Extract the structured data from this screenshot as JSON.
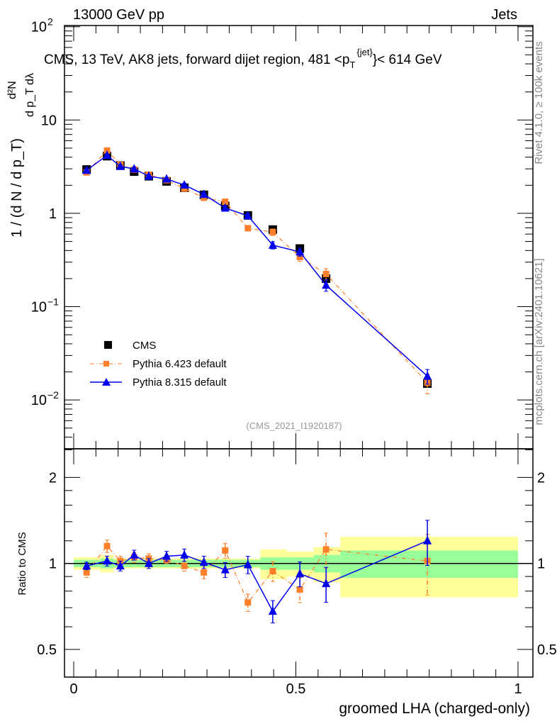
{
  "header": {
    "left": "13000 GeV pp",
    "right": "Jets"
  },
  "side_labels": {
    "rivet": "Rivet 4.1.0, ≥ 100k events",
    "mcplots": "mcplots.cern.ch [arXiv:2401.10621]"
  },
  "chart_data": [
    {
      "type": "line",
      "title": "CMS, 13 TeV, AK8 jets, forward dijet region, 481 <p_T^{jet}< 614 GeV",
      "title_parts": {
        "main": "CMS, 13 TeV, AK8 jets, forward dijet region, 481 <p",
        "sub": "T",
        "sup": "{jet}",
        "end": "}< 614 GeV"
      },
      "ylabel": "1/(dN/dp_T) d^2N/(dp_T dλ)",
      "ylabel_parts": {
        "num": "d²N",
        "den": "d p_T dλ",
        "prefix": "1 / (d N / d p_T)"
      },
      "yscale": "log",
      "ylim": [
        0.003,
        103
      ],
      "xlim": [
        -0.02,
        1.03
      ],
      "yticks": [
        {
          "v": 100,
          "label": "10",
          "exp": "2"
        },
        {
          "v": 10,
          "label": "10",
          "exp": ""
        },
        {
          "v": 1,
          "label": "1",
          "exp": ""
        },
        {
          "v": 0.1,
          "label": "10",
          "exp": "−1"
        },
        {
          "v": 0.01,
          "label": "10",
          "exp": "−2"
        }
      ],
      "annotation": "(CMS_2021_I1920187)",
      "legend_placement": "lower-left",
      "bin_edges": [
        0,
        0.06,
        0.09,
        0.12,
        0.15,
        0.19,
        0.23,
        0.27,
        0.32,
        0.37,
        0.42,
        0.48,
        0.54,
        0.6,
        1.0
      ],
      "x": [
        0.029,
        0.075,
        0.105,
        0.136,
        0.169,
        0.209,
        0.249,
        0.293,
        0.341,
        0.392,
        0.448,
        0.509,
        0.568,
        0.796
      ],
      "series": [
        {
          "name": "CMS",
          "color": "#000000",
          "marker": "square",
          "values": [
            2.95,
            4.1,
            3.25,
            2.8,
            2.5,
            2.2,
            1.88,
            1.58,
            1.2,
            0.95,
            0.67,
            0.42,
            0.2,
            0.015
          ]
        },
        {
          "name": "Pythia 6.423 default",
          "color": "#ff7f2a",
          "marker": "square-small",
          "dash": "dashdot",
          "ratios": [
            0.93,
            1.15,
            1.02,
            1.05,
            1.04,
            1.03,
            0.98,
            0.93,
            1.11,
            0.73,
            0.94,
            0.81,
            1.12,
            1.02
          ],
          "rel_err": [
            0.04,
            0.05,
            0.04,
            0.04,
            0.04,
            0.03,
            0.04,
            0.05,
            0.06,
            0.07,
            0.08,
            0.1,
            0.14,
            0.24
          ]
        },
        {
          "name": "Pythia 8.315 default",
          "color": "#0000ee",
          "marker": "triangle",
          "dash": "solid",
          "ratios": [
            0.98,
            1.02,
            0.98,
            1.07,
            1.0,
            1.06,
            1.07,
            1.01,
            0.95,
            0.99,
            0.68,
            0.92,
            0.85,
            1.2
          ],
          "rel_err": [
            0.03,
            0.04,
            0.04,
            0.04,
            0.04,
            0.04,
            0.05,
            0.05,
            0.06,
            0.07,
            0.09,
            0.1,
            0.14,
            0.18
          ]
        }
      ]
    },
    {
      "type": "line",
      "ylabel": "Ratio to CMS",
      "xlabel": "groomed LHA (charged-only)",
      "yscale": "log",
      "ylim": [
        0.4,
        2.52
      ],
      "yticks": [
        {
          "v": 2,
          "label": "2"
        },
        {
          "v": 1,
          "label": "1"
        },
        {
          "v": 0.5,
          "label": "0.5"
        }
      ],
      "xticks": [
        {
          "v": 0,
          "label": "0"
        },
        {
          "v": 0.5,
          "label": "0.5"
        },
        {
          "v": 1,
          "label": "1"
        }
      ],
      "band_stat": [
        0.03,
        0.04,
        0.03,
        0.03,
        0.03,
        0.03,
        0.03,
        0.03,
        0.03,
        0.03,
        0.05,
        0.05,
        0.07,
        0.11
      ],
      "band_total": [
        0.05,
        0.07,
        0.04,
        0.04,
        0.04,
        0.04,
        0.04,
        0.04,
        0.04,
        0.04,
        0.12,
        0.1,
        0.14,
        0.24
      ],
      "band_colors": {
        "stat": "#99ff99",
        "total": "#ffff99"
      }
    }
  ]
}
